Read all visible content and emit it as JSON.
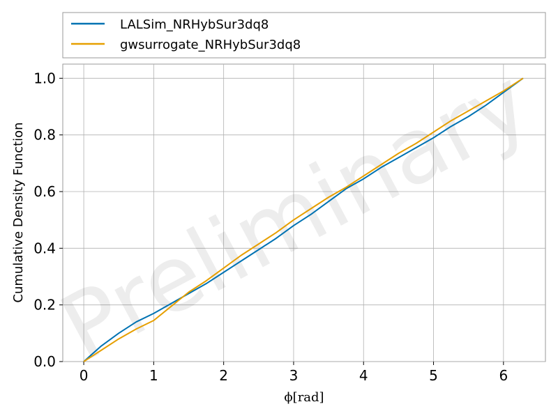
{
  "chart_data": {
    "type": "line",
    "xlabel": "ϕ[rad]",
    "ylabel": "Cumulative Density Function",
    "xlim": [
      -0.3,
      6.6
    ],
    "ylim": [
      0.0,
      1.05
    ],
    "x_ticks": [
      "0",
      "1",
      "2",
      "3",
      "4",
      "5",
      "6"
    ],
    "y_ticks": [
      "0.0",
      "0.2",
      "0.4",
      "0.6",
      "0.8",
      "1.0"
    ],
    "grid": true,
    "legend_position": "top (above plot)",
    "watermark": "Preliminary",
    "series": [
      {
        "name": "LALSim_NRHybSur3dq8",
        "color": "#0072b2",
        "x": [
          0.0,
          0.25,
          0.5,
          0.75,
          1.0,
          1.25,
          1.5,
          1.75,
          2.0,
          2.25,
          2.5,
          2.75,
          3.0,
          3.25,
          3.5,
          3.75,
          4.0,
          4.25,
          4.5,
          4.75,
          5.0,
          5.25,
          5.5,
          5.75,
          6.0,
          6.28
        ],
        "y": [
          0.0,
          0.055,
          0.1,
          0.14,
          0.17,
          0.205,
          0.24,
          0.275,
          0.315,
          0.355,
          0.395,
          0.435,
          0.48,
          0.52,
          0.565,
          0.61,
          0.645,
          0.685,
          0.72,
          0.755,
          0.79,
          0.83,
          0.865,
          0.905,
          0.95,
          1.0
        ]
      },
      {
        "name": "gwsurrogate_NRHybSur3dq8",
        "color": "#e69f00",
        "x": [
          0.0,
          0.25,
          0.5,
          0.75,
          1.0,
          1.25,
          1.5,
          1.75,
          2.0,
          2.25,
          2.5,
          2.75,
          3.0,
          3.25,
          3.5,
          3.75,
          4.0,
          4.25,
          4.5,
          4.75,
          5.0,
          5.25,
          5.5,
          5.75,
          6.0,
          6.28
        ],
        "y": [
          0.0,
          0.04,
          0.08,
          0.115,
          0.145,
          0.195,
          0.245,
          0.285,
          0.33,
          0.375,
          0.415,
          0.455,
          0.5,
          0.54,
          0.58,
          0.615,
          0.655,
          0.695,
          0.735,
          0.77,
          0.81,
          0.85,
          0.885,
          0.92,
          0.955,
          1.0
        ]
      }
    ]
  }
}
